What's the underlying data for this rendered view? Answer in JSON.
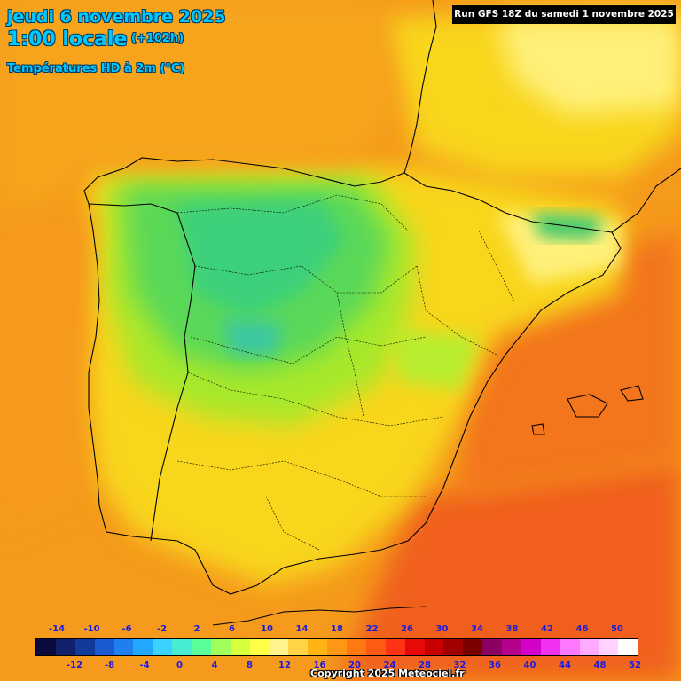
{
  "header": {
    "date": "jeudi 6 novembre 2025",
    "hour": "1:00 locale",
    "offset": "(+102h)",
    "variable": "Températures HD à 2m (°C)"
  },
  "run": {
    "label": "Run GFS 18Z du samedi 1 novembre 2025"
  },
  "legend": {
    "top_labels": [
      "-14",
      "-10",
      "-6",
      "-2",
      "2",
      "6",
      "10",
      "14",
      "18",
      "22",
      "26",
      "30",
      "34",
      "38",
      "42",
      "46",
      "50"
    ],
    "bottom_labels": [
      "-12",
      "-8",
      "-4",
      "0",
      "4",
      "8",
      "12",
      "16",
      "20",
      "24",
      "28",
      "32",
      "36",
      "40",
      "44",
      "48",
      "52"
    ],
    "colors": [
      "#0a0a3c",
      "#10206a",
      "#123a9a",
      "#1a5ad0",
      "#1f7ff0",
      "#22a8ff",
      "#3cd2ff",
      "#48ecd0",
      "#5aff9a",
      "#a0ff5a",
      "#d8ff3c",
      "#ffff46",
      "#fff38c",
      "#ffd446",
      "#ffb414",
      "#ff9614",
      "#ff7814",
      "#ff5a14",
      "#ff3214",
      "#e60a0a",
      "#c80000",
      "#a00000",
      "#7a0000",
      "#8c0064",
      "#b4008c",
      "#d200c8",
      "#f032f0",
      "#ff78ff",
      "#ffaaff",
      "#ffd2ff",
      "#ffffff"
    ]
  },
  "copyright": "Copyright 2025 Meteociel.fr"
}
